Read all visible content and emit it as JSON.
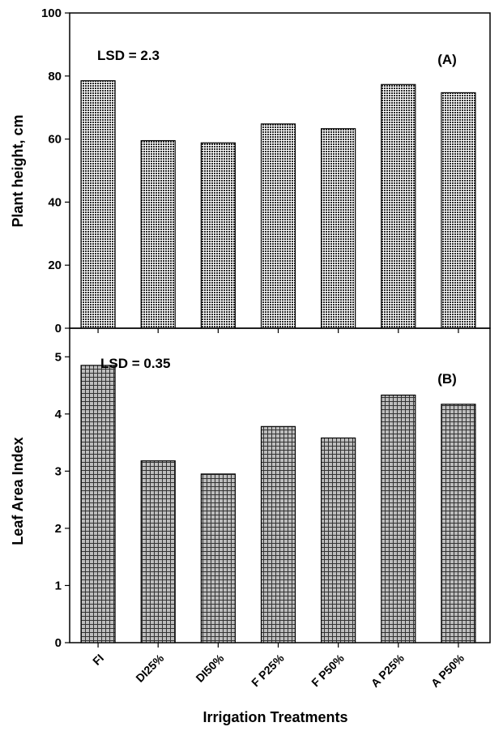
{
  "chart_data": [
    {
      "type": "bar",
      "panel_label": "(A)",
      "annotation": "LSD = 2.3",
      "ylabel": "Plant height, cm",
      "categories": [
        "FI",
        "DI25%",
        "DI50%",
        "F P25%",
        "F P50%",
        "A P25%",
        "A P50%"
      ],
      "values": [
        78.5,
        59.5,
        58.8,
        64.8,
        63.3,
        77.3,
        74.7
      ],
      "ylim": [
        0,
        100
      ],
      "yticks": [
        "0",
        "20",
        "40",
        "60",
        "80",
        "100"
      ],
      "grid": false
    },
    {
      "type": "bar",
      "panel_label": "(B)",
      "annotation": "LSD = 0.35",
      "ylabel": "Leaf Area Index",
      "xlabel": "Irrigation Treatments",
      "categories": [
        "FI",
        "DI25%",
        "DI50%",
        "F P25%",
        "F P50%",
        "A P25%",
        "A P50%"
      ],
      "values": [
        4.85,
        3.18,
        2.95,
        3.78,
        3.58,
        4.33,
        4.17
      ],
      "ylim": [
        0,
        5.5
      ],
      "yticks": [
        "0",
        "1",
        "2",
        "3",
        "4",
        "5"
      ],
      "grid": false
    }
  ]
}
